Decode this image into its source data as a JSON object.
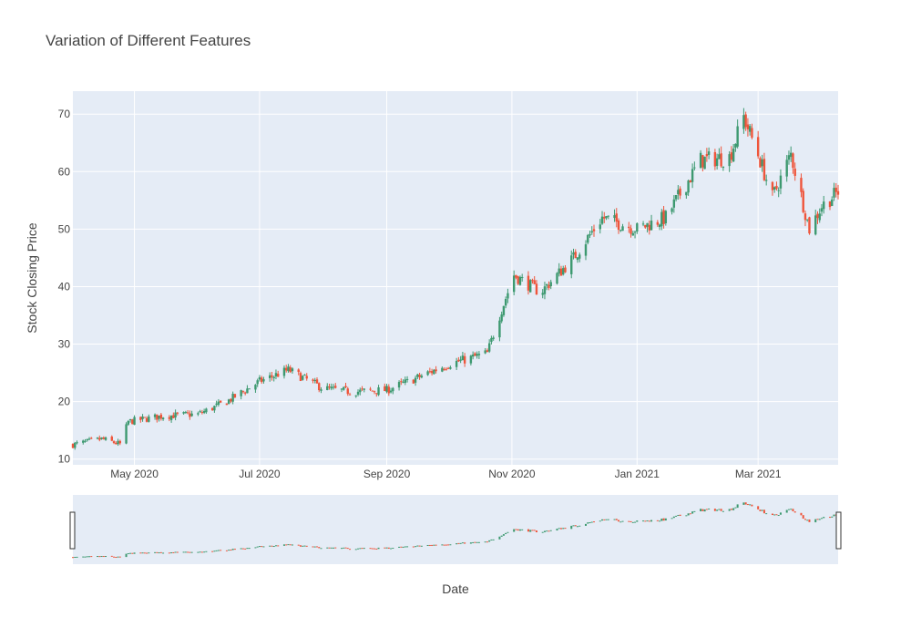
{
  "chart_data": {
    "type": "candlestick",
    "title": "Variation of Different Features",
    "xlabel": "Date",
    "ylabel": "Stock Closing Price",
    "x_range": [
      "2020-04-01",
      "2021-04-09"
    ],
    "ylim": [
      9,
      74
    ],
    "y_ticks": [
      10,
      20,
      30,
      40,
      50,
      60,
      70
    ],
    "x_ticks": [
      {
        "date": "2020-05-01",
        "label": "May 2020"
      },
      {
        "date": "2020-07-01",
        "label": "Jul 2020"
      },
      {
        "date": "2020-09-01",
        "label": "Sep 2020"
      },
      {
        "date": "2020-11-01",
        "label": "Nov 2020"
      },
      {
        "date": "2021-01-01",
        "label": "Jan 2021"
      },
      {
        "date": "2021-03-01",
        "label": "Mar 2021"
      }
    ],
    "grid": true,
    "range_slider": true,
    "colors": {
      "increasing": "#3d9970",
      "decreasing": "#ef553b",
      "plot_bg": "#e5ecf6",
      "grid": "#ffffff",
      "text": "#444444"
    },
    "key_closes": [
      {
        "date": "2020-04-01",
        "close": 12.5
      },
      {
        "date": "2020-04-15",
        "close": 13.5
      },
      {
        "date": "2020-04-24",
        "close": 12.6
      },
      {
        "date": "2020-04-28",
        "close": 16.5
      },
      {
        "date": "2020-05-15",
        "close": 17.5
      },
      {
        "date": "2020-06-01",
        "close": 17.8
      },
      {
        "date": "2020-06-15",
        "close": 20.0
      },
      {
        "date": "2020-07-01",
        "close": 23.5
      },
      {
        "date": "2020-07-15",
        "close": 25.5
      },
      {
        "date": "2020-08-01",
        "close": 22.3
      },
      {
        "date": "2020-08-15",
        "close": 21.7
      },
      {
        "date": "2020-09-01",
        "close": 22.0
      },
      {
        "date": "2020-09-15",
        "close": 24.0
      },
      {
        "date": "2020-10-01",
        "close": 26.5
      },
      {
        "date": "2020-10-20",
        "close": 28.4
      },
      {
        "date": "2020-10-26",
        "close": 35.0
      },
      {
        "date": "2020-11-02",
        "close": 42.0
      },
      {
        "date": "2020-11-15",
        "close": 39.0
      },
      {
        "date": "2020-12-01",
        "close": 45.0
      },
      {
        "date": "2020-12-15",
        "close": 52.0
      },
      {
        "date": "2021-01-01",
        "close": 50.0
      },
      {
        "date": "2021-01-15",
        "close": 52.0
      },
      {
        "date": "2021-02-01",
        "close": 62.0
      },
      {
        "date": "2021-02-15",
        "close": 62.5
      },
      {
        "date": "2021-02-22",
        "close": 69.5
      },
      {
        "date": "2021-03-01",
        "close": 63.0
      },
      {
        "date": "2021-03-08",
        "close": 55.5
      },
      {
        "date": "2021-03-17",
        "close": 63.0
      },
      {
        "date": "2021-03-26",
        "close": 50.0
      },
      {
        "date": "2021-04-01",
        "close": 54.0
      },
      {
        "date": "2021-04-09",
        "close": 56.5
      }
    ]
  }
}
